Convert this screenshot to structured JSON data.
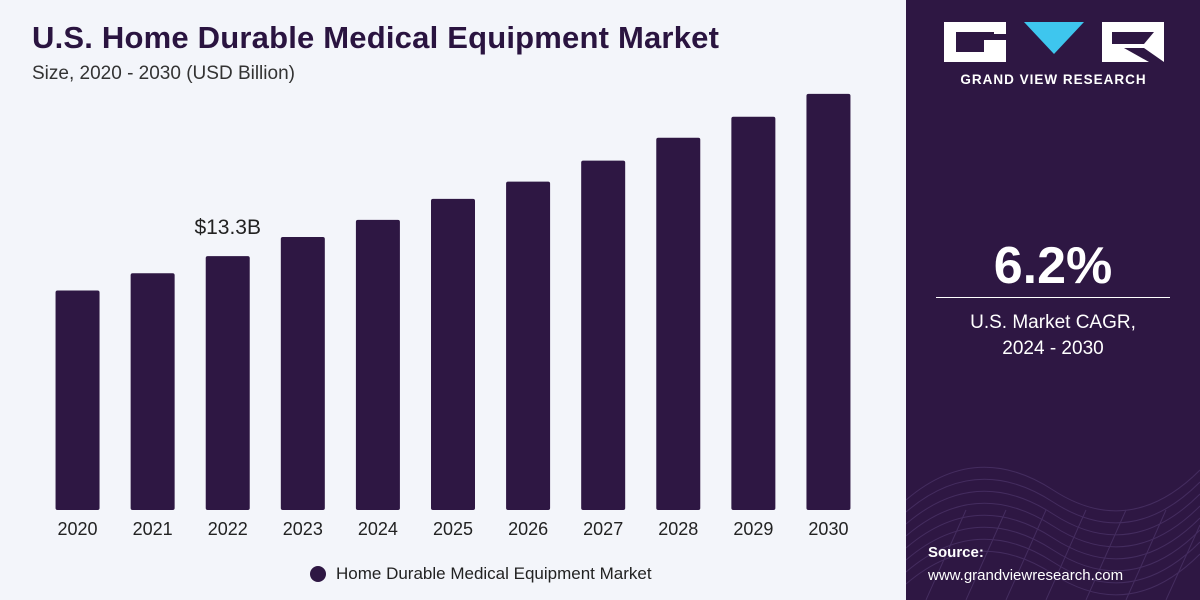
{
  "header": {
    "title": "U.S. Home Durable Medical Equipment Market",
    "subtitle": "Size, 2020 - 2030 (USD Billion)"
  },
  "colors": {
    "bar": "#2e1743",
    "panel_background": "#2e1743",
    "chart_background": "#f3f5fa",
    "logo_accent": "#3ec6ee"
  },
  "chart_data": {
    "type": "bar",
    "categories": [
      "2020",
      "2021",
      "2022",
      "2023",
      "2024",
      "2025",
      "2026",
      "2027",
      "2028",
      "2029",
      "2030"
    ],
    "series": [
      {
        "name": "Home Durable Medical Equipment Market",
        "values": [
          11.5,
          12.4,
          13.3,
          14.3,
          15.2,
          16.3,
          17.2,
          18.3,
          19.5,
          20.6,
          21.8
        ]
      }
    ],
    "annotations": [
      {
        "category": "2022",
        "text": "$13.3B"
      }
    ],
    "ylim": [
      0,
      22
    ],
    "grid": false,
    "legend": "bottom-center",
    "xlabel": "",
    "ylabel": ""
  },
  "sidebar": {
    "brand_name": "GRAND VIEW RESEARCH",
    "cagr_value": "6.2%",
    "cagr_label_line1": "U.S. Market CAGR,",
    "cagr_label_line2": "2024 - 2030",
    "source_title": "Source:",
    "source_url": "www.grandviewresearch.com",
    "logo_icon": "gvr-logo-icon"
  }
}
